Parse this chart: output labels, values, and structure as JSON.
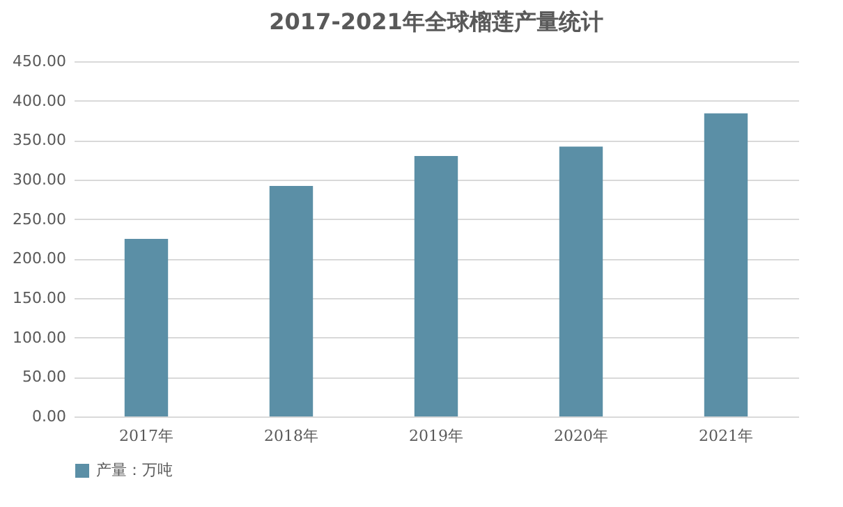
{
  "chart_data": {
    "type": "bar",
    "title": "2017-2021年全球榴莲产量统计",
    "categories": [
      "2017年",
      "2018年",
      "2019年",
      "2020年",
      "2021年"
    ],
    "series": [
      {
        "name": "产量：万吨",
        "color": "#5b8fa6",
        "values": [
          225,
          292,
          330,
          342,
          384
        ]
      }
    ],
    "ylim": [
      0,
      450
    ],
    "yticks": [
      {
        "value": 0,
        "label": "0.00"
      },
      {
        "value": 50,
        "label": "50.00"
      },
      {
        "value": 100,
        "label": "100.00"
      },
      {
        "value": 150,
        "label": "150.00"
      },
      {
        "value": 200,
        "label": "200.00"
      },
      {
        "value": 250,
        "label": "250.00"
      },
      {
        "value": 300,
        "label": "300.00"
      },
      {
        "value": 350,
        "label": "350.00"
      },
      {
        "value": 400,
        "label": "400.00"
      },
      {
        "value": 450,
        "label": "450.00"
      }
    ],
    "grid": "y",
    "legend": "bottom"
  }
}
